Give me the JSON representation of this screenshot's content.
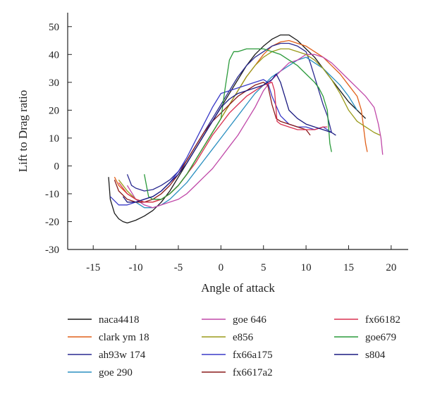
{
  "chart_data": {
    "type": "line",
    "xlabel": "Angle of attack",
    "ylabel": "Lift to Drag ratio",
    "xlim": [
      -18,
      22
    ],
    "ylim": [
      -30,
      55
    ],
    "xticks": [
      -15,
      -10,
      -5,
      0,
      5,
      10,
      15,
      20
    ],
    "yticks": [
      -30,
      -20,
      -10,
      0,
      10,
      20,
      30,
      40,
      50
    ],
    "grid": false,
    "legend_position": "bottom",
    "series": [
      {
        "name": "naca4418",
        "color": "#1a1a1a",
        "x": [
          -13.2,
          -13,
          -12.5,
          -12,
          -11.5,
          -11,
          -10.5,
          -10,
          -9,
          -8,
          -7,
          -6,
          -5,
          -4,
          -3,
          -2,
          -1,
          0,
          1,
          2,
          3,
          4,
          5,
          6,
          7,
          8,
          9,
          10,
          11,
          12,
          13,
          14,
          15,
          16,
          17
        ],
        "y": [
          -4,
          -12,
          -17,
          -19,
          -20,
          -20.5,
          -20,
          -19.5,
          -18,
          -16,
          -13,
          -9,
          -4,
          1,
          6,
          11,
          16,
          21,
          26,
          31,
          36,
          40,
          43,
          45.5,
          47,
          47,
          45,
          42,
          39,
          35,
          31,
          27,
          23,
          20,
          17
        ]
      },
      {
        "name": "clark ym 18",
        "color": "#e0601a",
        "x": [
          -12.5,
          -12,
          -11,
          -10,
          -9,
          -8,
          -7,
          -6,
          -5,
          -4,
          -3,
          -2,
          -1,
          0,
          1,
          2,
          3,
          4,
          5,
          6,
          7,
          8,
          9,
          10,
          11,
          12,
          13,
          14,
          15,
          16,
          16.5,
          17,
          17.2
        ],
        "y": [
          -4,
          -7,
          -10,
          -12,
          -13,
          -13,
          -12,
          -10,
          -7,
          -3,
          2,
          7,
          12,
          17,
          22,
          27,
          32,
          36,
          40,
          43,
          44.5,
          45,
          44,
          43,
          41,
          39,
          36,
          33,
          29,
          25,
          20,
          8,
          5
        ]
      },
      {
        "name": "ah93w 174",
        "color": "#2a2a90",
        "x": [
          -11,
          -10.5,
          -10,
          -9,
          -8,
          -7,
          -6,
          -5,
          -4,
          -3,
          -2,
          -1,
          0,
          1,
          2,
          3,
          4,
          5,
          6,
          7,
          8,
          9,
          10,
          10.5,
          11,
          12,
          12.5,
          13
        ],
        "y": [
          -3,
          -7,
          -8,
          -9,
          -8.5,
          -7,
          -5,
          -2,
          2,
          7,
          12,
          17,
          22,
          27,
          32,
          36,
          39,
          41,
          43,
          44,
          44,
          43,
          41,
          37,
          32,
          22,
          18,
          12
        ]
      },
      {
        "name": "goe 290",
        "color": "#2a8fc0",
        "x": [
          -10,
          -9,
          -8,
          -7,
          -6,
          -5,
          -4,
          -3,
          -2,
          -1,
          0,
          1,
          2,
          3,
          4,
          5,
          6,
          7,
          8,
          9,
          10,
          11,
          12,
          13,
          14,
          15,
          16
        ],
        "y": [
          -13,
          -15,
          -15,
          -14,
          -12,
          -9,
          -6,
          -2,
          2,
          6,
          10,
          14,
          18,
          22,
          26,
          29,
          32,
          34,
          36,
          38,
          39,
          37,
          35,
          32,
          29,
          25,
          20
        ]
      },
      {
        "name": "goe 646",
        "color": "#c048a8",
        "x": [
          -11,
          -10,
          -9,
          -8,
          -7,
          -6,
          -5,
          -4,
          -3,
          -2,
          -1,
          0,
          1,
          2,
          3,
          4,
          5,
          6,
          7,
          8,
          9,
          10,
          11,
          12,
          13,
          14,
          15,
          16,
          17,
          18,
          18.5,
          18.8,
          19
        ],
        "y": [
          -7,
          -12,
          -14,
          -15,
          -14,
          -13,
          -12,
          -10,
          -7,
          -4,
          -1,
          3,
          7,
          11,
          16,
          21,
          27,
          31,
          34,
          37,
          38,
          40,
          40,
          39,
          37,
          34,
          31,
          28,
          25,
          21,
          15,
          10,
          4
        ]
      },
      {
        "name": "e856",
        "color": "#9a9a1a",
        "x": [
          -12,
          -11,
          -10,
          -9,
          -8,
          -7,
          -6,
          -5,
          -4,
          -3,
          -2,
          -1,
          0,
          1,
          2,
          3,
          4,
          5,
          6,
          7,
          8,
          9,
          10,
          11,
          12,
          13,
          14,
          15,
          16,
          17,
          18,
          18.7
        ],
        "y": [
          -5,
          -9,
          -12,
          -13,
          -13,
          -12,
          -10,
          -7,
          -3,
          2,
          7,
          12,
          17,
          22,
          27,
          32,
          36,
          39,
          41,
          42,
          42,
          41,
          40,
          38,
          35,
          31,
          26,
          20,
          16,
          14,
          12,
          11
        ]
      },
      {
        "name": "fx66a175",
        "color": "#3a3ac8",
        "x": [
          -13,
          -12,
          -11,
          -10,
          -9,
          -8,
          -7,
          -6,
          -5,
          -4,
          -3,
          -2,
          -1,
          0,
          1,
          2,
          3,
          4,
          5,
          5.5,
          6,
          7,
          8,
          9,
          10,
          11,
          12,
          13
        ],
        "y": [
          -11,
          -14,
          -14,
          -13,
          -12,
          -11,
          -9,
          -6,
          -2,
          3,
          9,
          15,
          21,
          26,
          27,
          28,
          29,
          30,
          31,
          30,
          25,
          18,
          15,
          14,
          14,
          13,
          14,
          12
        ]
      },
      {
        "name": "fx6617a2",
        "color": "#8a1a1a",
        "x": [
          -12.5,
          -12,
          -11,
          -10,
          -9,
          -8,
          -7,
          -6,
          -5,
          -4,
          -3,
          -2,
          -1,
          0,
          1,
          2,
          3,
          4,
          5,
          5.5,
          6,
          6.5,
          7,
          8,
          9,
          10,
          10.5
        ],
        "y": [
          -5,
          -9,
          -12,
          -13,
          -13,
          -12,
          -10,
          -7,
          -3,
          2,
          7,
          12,
          16,
          19,
          22,
          25,
          27,
          29,
          30,
          29,
          22,
          17,
          16,
          15,
          14,
          13,
          11
        ]
      },
      {
        "name": "fx66182",
        "color": "#d83050",
        "x": [
          -12,
          -11,
          -10,
          -9,
          -8,
          -7,
          -6,
          -5,
          -4,
          -3,
          -2,
          -1,
          0,
          1,
          2,
          3,
          4,
          5,
          6,
          6.3,
          6.6,
          7,
          8,
          9,
          10,
          11,
          12,
          12.5
        ],
        "y": [
          -6,
          -10,
          -12,
          -13,
          -13,
          -12,
          -10,
          -7,
          -3,
          1,
          6,
          11,
          15,
          19,
          22,
          25,
          27,
          29,
          30,
          27,
          16,
          15,
          14,
          13,
          13,
          13,
          14,
          14
        ]
      },
      {
        "name": "goe679",
        "color": "#2a9a3a",
        "x": [
          -9,
          -8.5,
          -8,
          -7,
          -6,
          -5,
          -4,
          -3,
          -2,
          -1,
          0,
          0.5,
          1,
          1.5,
          2,
          3,
          4,
          5,
          6,
          7,
          8,
          9,
          10,
          11,
          11.5,
          12,
          12.5,
          12.8,
          13
        ],
        "y": [
          -3,
          -11,
          -12,
          -12,
          -10,
          -7,
          -3,
          2,
          7,
          12,
          17,
          28,
          38,
          41,
          41,
          42,
          42,
          42,
          41,
          40,
          38,
          36,
          33,
          30,
          28,
          25,
          20,
          8,
          5
        ]
      },
      {
        "name": "s804",
        "color": "#1a1a80",
        "x": [
          -11.5,
          -11,
          -10,
          -9,
          -8,
          -7,
          -6,
          -5,
          -4,
          -3,
          -2,
          -1,
          0,
          1,
          2,
          3,
          4,
          5,
          6,
          6.5,
          7,
          7.5,
          8,
          9,
          10,
          11,
          12,
          13,
          13.5
        ],
        "y": [
          -11,
          -13,
          -13,
          -12,
          -11,
          -9,
          -6,
          -3,
          1,
          6,
          11,
          16,
          21,
          24,
          26,
          27,
          28,
          29,
          31,
          33,
          30,
          25,
          20,
          17,
          15,
          14,
          13,
          12,
          11
        ]
      }
    ]
  }
}
